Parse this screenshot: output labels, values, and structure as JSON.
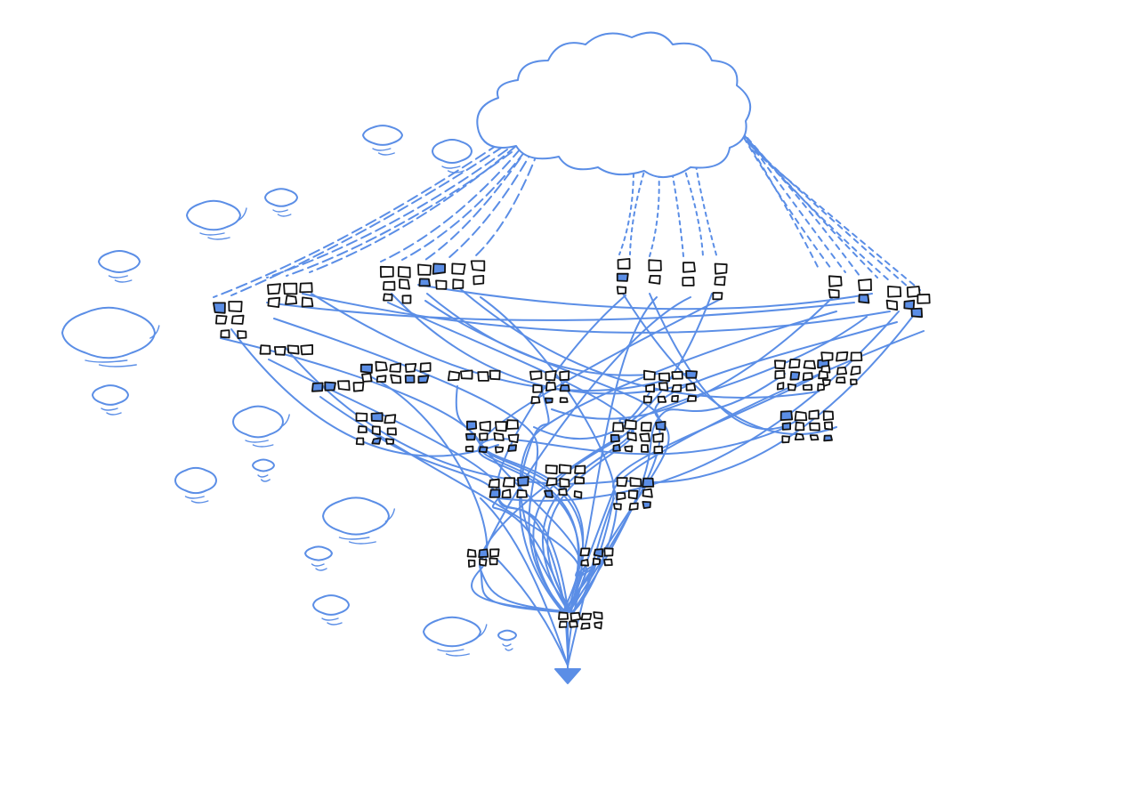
{
  "diagram": {
    "kind": "hand-drawn graph: a large cloud feeding clusters of small boxes through dashed links, which then converge through solid curved links into a single downward-pointing sink",
    "colors": {
      "line": "#5b8ee6",
      "box_outline": "#111111",
      "background": "#ffffff"
    },
    "sources": {
      "main_cloud": 1,
      "small_clouds": 16
    },
    "top_tier_groups": 14,
    "middle_tier_groups": 22,
    "convergence_groups": 5,
    "sink": "triangle-arrow"
  }
}
